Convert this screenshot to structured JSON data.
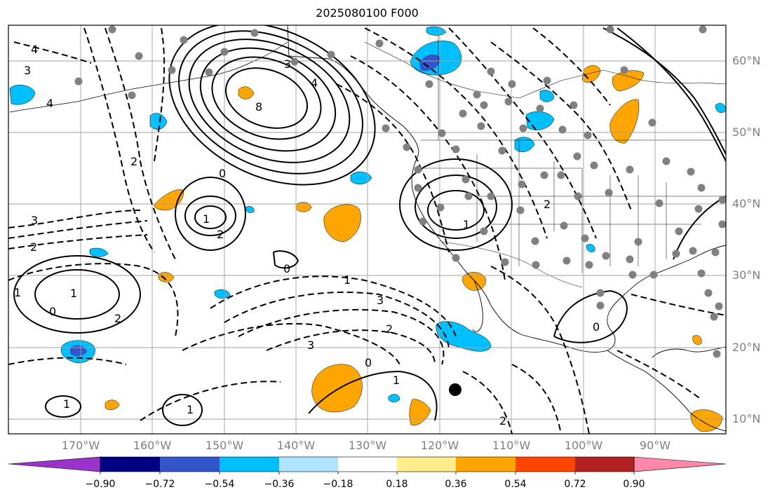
{
  "title": "2025080100 F000",
  "map": {
    "region": "North-East Pacific and North America",
    "lon_range": [
      -180,
      -80
    ],
    "lat_range": [
      8,
      65
    ],
    "projection": "cylindrical",
    "grid": true
  },
  "lat_labels": [
    "60°N",
    "50°N",
    "40°N",
    "30°N",
    "20°N",
    "10°N"
  ],
  "lon_labels": [
    "170°W",
    "160°W",
    "150°W",
    "140°W",
    "130°W",
    "120°W",
    "110°W",
    "100°W",
    "90°W"
  ],
  "contour_labels": [
    "4",
    "3",
    "4",
    "8",
    "4",
    "3",
    "2",
    "1",
    "0",
    "2",
    "3",
    "2",
    "1",
    "0",
    "1",
    "2",
    "3",
    "2",
    "1",
    "1",
    "0",
    "0",
    "1",
    "2",
    "3",
    "0",
    "1",
    "1",
    "2"
  ],
  "colorbar": {
    "ticks": [
      "−0.90",
      "−0.72",
      "−0.54",
      "−0.36",
      "−0.18",
      "0.18",
      "0.36",
      "0.54",
      "0.72",
      "0.90"
    ],
    "colors": [
      "#9933cc",
      "#000080",
      "#3355cc",
      "#00bfff",
      "#aee4ff",
      "#ffffff",
      "#ffec8b",
      "#ffa500",
      "#ff4500",
      "#b22222",
      "#ff88aa"
    ],
    "extend": "both"
  },
  "colors": {
    "black_contour": "#000000",
    "grid": "#a0a0a0",
    "station_dot": "#808080"
  }
}
